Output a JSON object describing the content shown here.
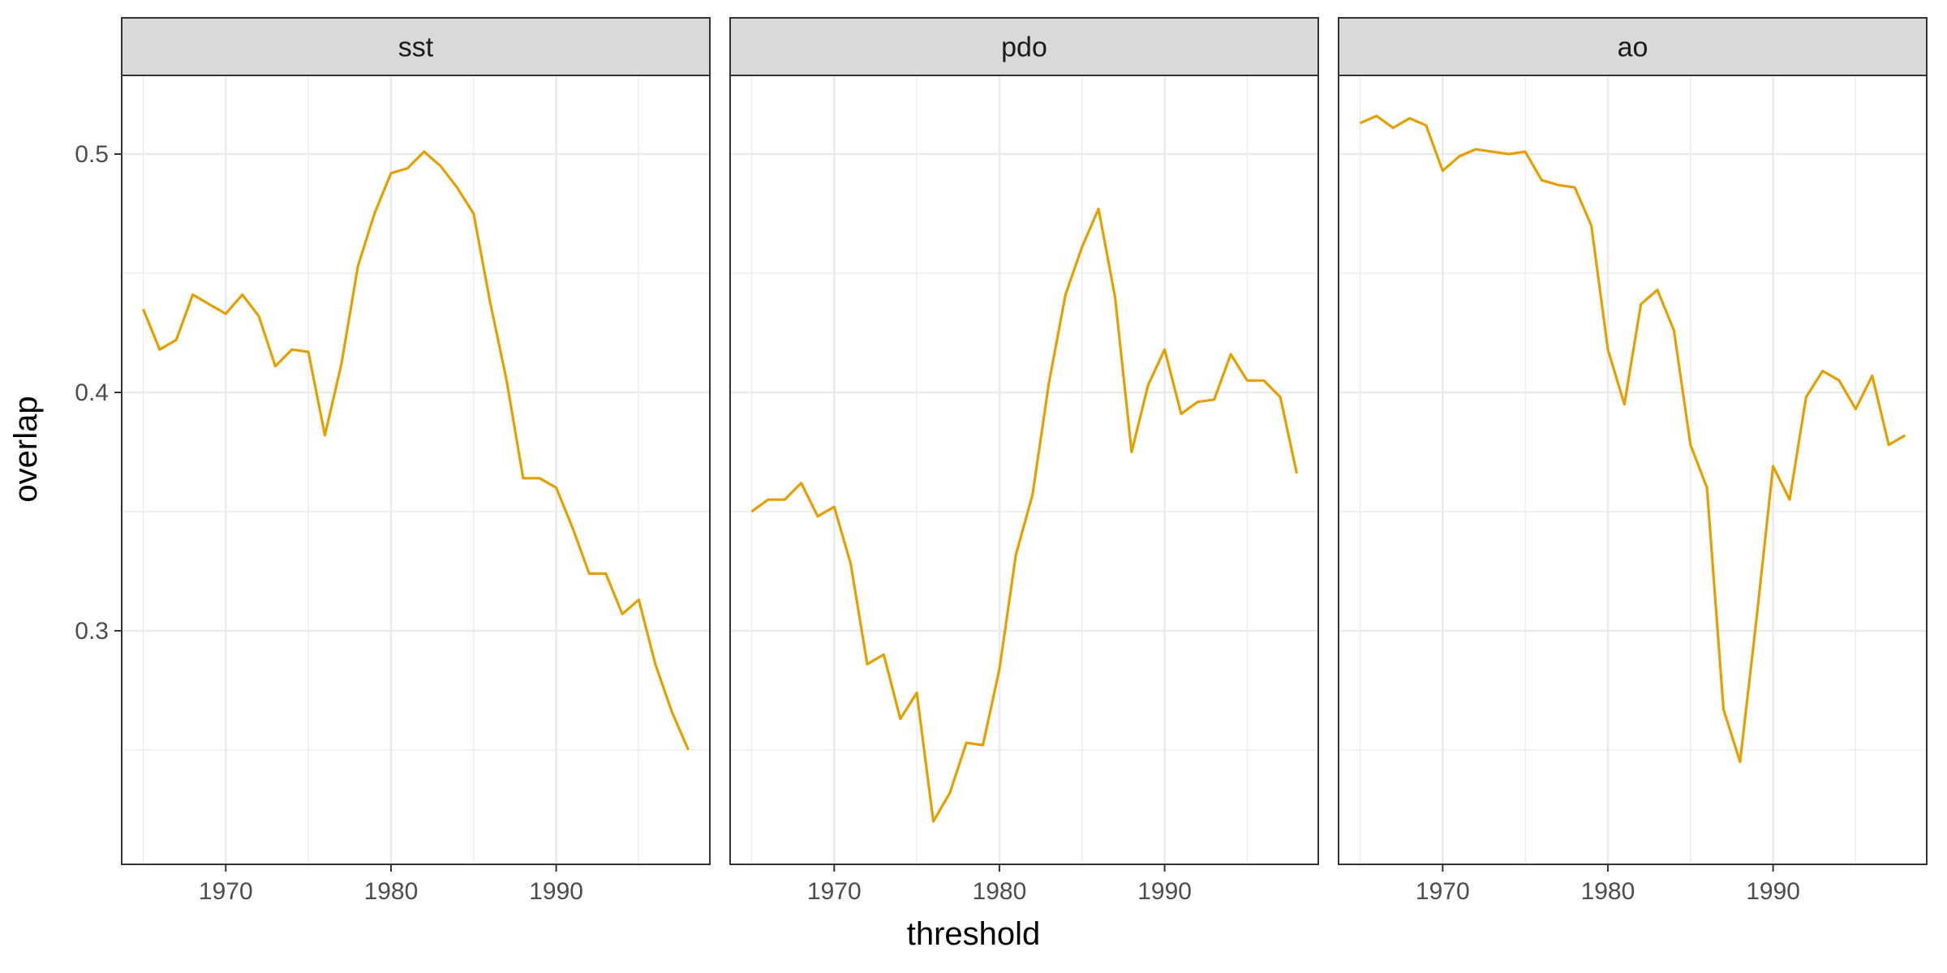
{
  "chart_data": {
    "type": "line",
    "xlabel": "threshold",
    "ylabel": "overlap",
    "xlim": [
      1963.7,
      1999.3
    ],
    "ylim": [
      0.202,
      0.533
    ],
    "x_ticks": [
      1970,
      1980,
      1990
    ],
    "y_ticks": [
      0.3,
      0.4,
      0.5
    ],
    "y_tick_labels": [
      "0.3",
      "0.4",
      "0.5"
    ],
    "grid": true,
    "line_color": "#E69F00",
    "x": [
      1965,
      1966,
      1967,
      1968,
      1969,
      1970,
      1971,
      1972,
      1973,
      1974,
      1975,
      1976,
      1977,
      1978,
      1979,
      1980,
      1981,
      1982,
      1983,
      1984,
      1985,
      1986,
      1987,
      1988,
      1989,
      1990,
      1991,
      1992,
      1993,
      1994,
      1995,
      1996,
      1997,
      1998
    ],
    "panels": [
      {
        "strip": "sst",
        "values": [
          0.435,
          0.418,
          0.422,
          0.441,
          0.437,
          0.433,
          0.441,
          0.432,
          0.411,
          0.418,
          0.417,
          0.382,
          0.412,
          0.453,
          0.475,
          0.492,
          0.494,
          0.501,
          0.495,
          0.486,
          0.475,
          0.438,
          0.405,
          0.364,
          0.364,
          0.36,
          0.343,
          0.324,
          0.324,
          0.307,
          0.313,
          0.286,
          0.266,
          0.25
        ]
      },
      {
        "strip": "pdo",
        "values": [
          0.35,
          0.355,
          0.355,
          0.362,
          0.348,
          0.352,
          0.328,
          0.286,
          0.29,
          0.263,
          0.274,
          0.22,
          0.232,
          0.253,
          0.252,
          0.284,
          0.332,
          0.357,
          0.404,
          0.441,
          0.461,
          0.477,
          0.44,
          0.375,
          0.403,
          0.418,
          0.391,
          0.396,
          0.397,
          0.416,
          0.405,
          0.405,
          0.398,
          0.366
        ]
      },
      {
        "strip": "ao",
        "values": [
          0.513,
          0.516,
          0.511,
          0.515,
          0.512,
          0.493,
          0.499,
          0.502,
          0.501,
          0.5,
          0.501,
          0.489,
          0.487,
          0.486,
          0.47,
          0.418,
          0.395,
          0.437,
          0.443,
          0.426,
          0.378,
          0.36,
          0.267,
          0.245,
          0.305,
          0.369,
          0.355,
          0.398,
          0.409,
          0.405,
          0.393,
          0.407,
          0.378,
          0.382
        ]
      }
    ]
  }
}
